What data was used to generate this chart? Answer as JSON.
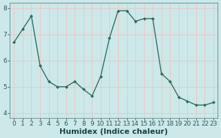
{
  "x": [
    0,
    1,
    2,
    3,
    4,
    5,
    6,
    7,
    8,
    9,
    10,
    11,
    12,
    13,
    14,
    15,
    16,
    17,
    18,
    19,
    20,
    21,
    22,
    23
  ],
  "y": [
    6.7,
    7.2,
    7.7,
    5.8,
    5.2,
    5.0,
    5.0,
    5.2,
    4.9,
    4.65,
    5.4,
    6.85,
    7.9,
    7.9,
    7.5,
    7.6,
    7.6,
    5.5,
    5.2,
    4.6,
    4.45,
    4.3,
    4.3,
    4.4
  ],
  "xlabel": "Humidex (Indice chaleur)",
  "ylim": [
    3.8,
    8.2
  ],
  "xlim": [
    -0.5,
    23.5
  ],
  "xticks": [
    0,
    1,
    2,
    3,
    4,
    5,
    6,
    7,
    8,
    9,
    10,
    11,
    12,
    13,
    14,
    15,
    16,
    17,
    18,
    19,
    20,
    21,
    22,
    23
  ],
  "yticks": [
    4,
    5,
    6,
    7,
    8
  ],
  "line_color": "#2d6b5e",
  "marker_color": "#2d6b5e",
  "bg_color": "#cce8e8",
  "grid_color": "#e8c8c8",
  "axis_color": "#7a9a9a",
  "tick_color": "#2d5555",
  "label_color": "#1a4545",
  "xlabel_fontsize": 8,
  "tick_fontsize": 6.5,
  "linewidth": 1.0,
  "markersize": 2.0
}
